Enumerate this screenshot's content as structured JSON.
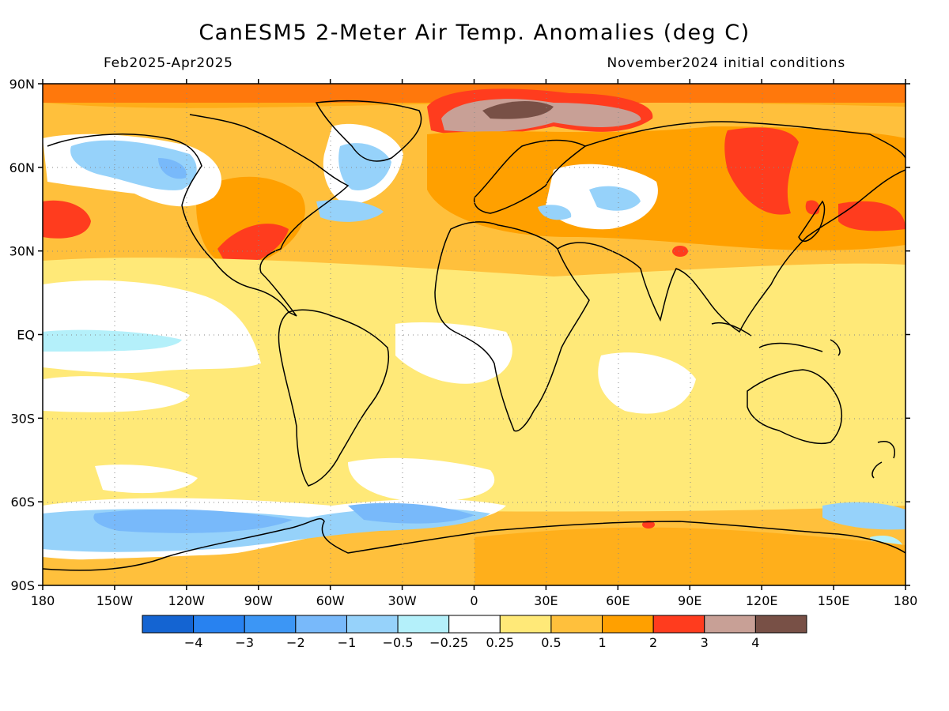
{
  "title": "CanESM5 2-Meter Air Temp. Anomalies (deg C)",
  "period": "Feb2025-Apr2025",
  "init": "November2024 initial conditions",
  "lat_labels": [
    "90N",
    "60N",
    "30N",
    "EQ",
    "30S",
    "60S",
    "90S"
  ],
  "lon_labels": [
    "180",
    "150W",
    "120W",
    "90W",
    "60W",
    "30W",
    "0",
    "30E",
    "60E",
    "90E",
    "120E",
    "150E",
    "180"
  ],
  "colorbar": {
    "colors": [
      "#1464d2",
      "#2882f0",
      "#3c96f5",
      "#78b9fa",
      "#96d2fa",
      "#b4f0fa",
      "#ffffff",
      "#ffe978",
      "#ffc03c",
      "#ffa000",
      "#ff3c1e",
      "#c8a096",
      "#785046"
    ],
    "labels": [
      "−4",
      "−3",
      "−2",
      "−1",
      "−0.5",
      "−0.25",
      "0.25",
      "0.5",
      "1",
      "2",
      "3",
      "4"
    ]
  },
  "colors": {
    "ocean_base": "#ffc03c",
    "coastline": "#000000"
  }
}
